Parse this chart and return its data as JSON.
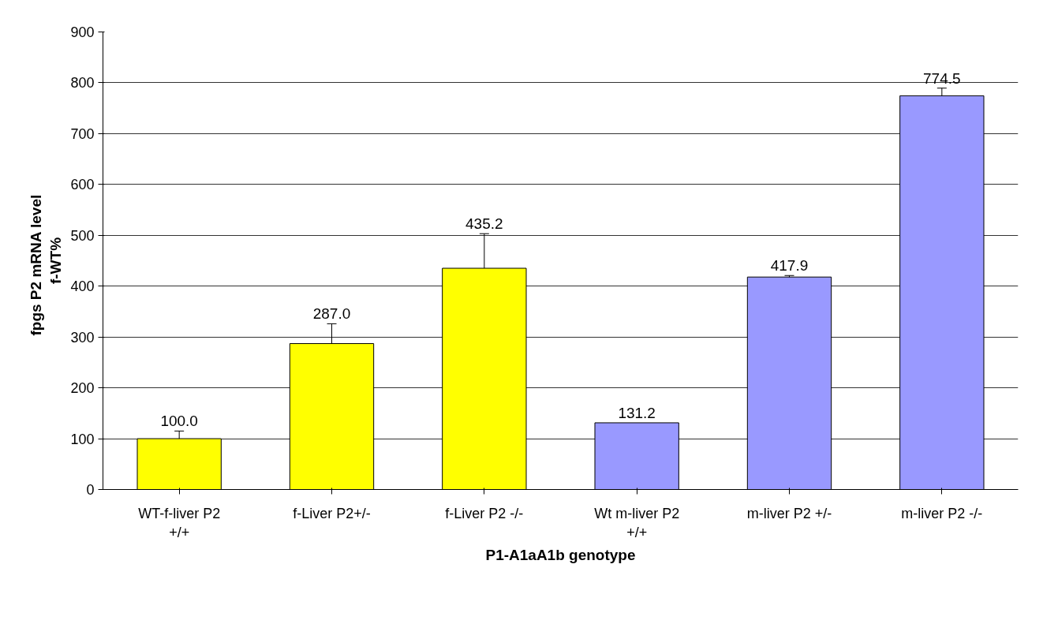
{
  "chart_data": {
    "type": "bar",
    "xlabel": "P1-A1aA1b genotype",
    "ylabel": "fpgs P2  mRNA  level\nf-WT%",
    "categories": [
      "WT-f-liver P2 +/+",
      "f-Liver P2+/-",
      "f-Liver P2 -/-",
      "Wt m-liver P2 +/+",
      "m-liver P2 +/-",
      "m-liver P2 -/-"
    ],
    "values": [
      100.0,
      287.0,
      435.2,
      131.2,
      417.9,
      774.5
    ],
    "colors": [
      "#ffff00",
      "#ffff00",
      "#ffff00",
      "#9999ff",
      "#9999ff",
      "#9999ff"
    ],
    "errors": [
      15,
      39,
      68,
      null,
      3,
      15
    ],
    "value_labels": [
      "100.0",
      "287.0",
      "435.2",
      "131.2",
      "417.9",
      "774.5"
    ],
    "ylim": [
      0,
      900
    ],
    "yticks": [
      0,
      100,
      200,
      300,
      400,
      500,
      600,
      700,
      800,
      900
    ],
    "grid": "y"
  }
}
